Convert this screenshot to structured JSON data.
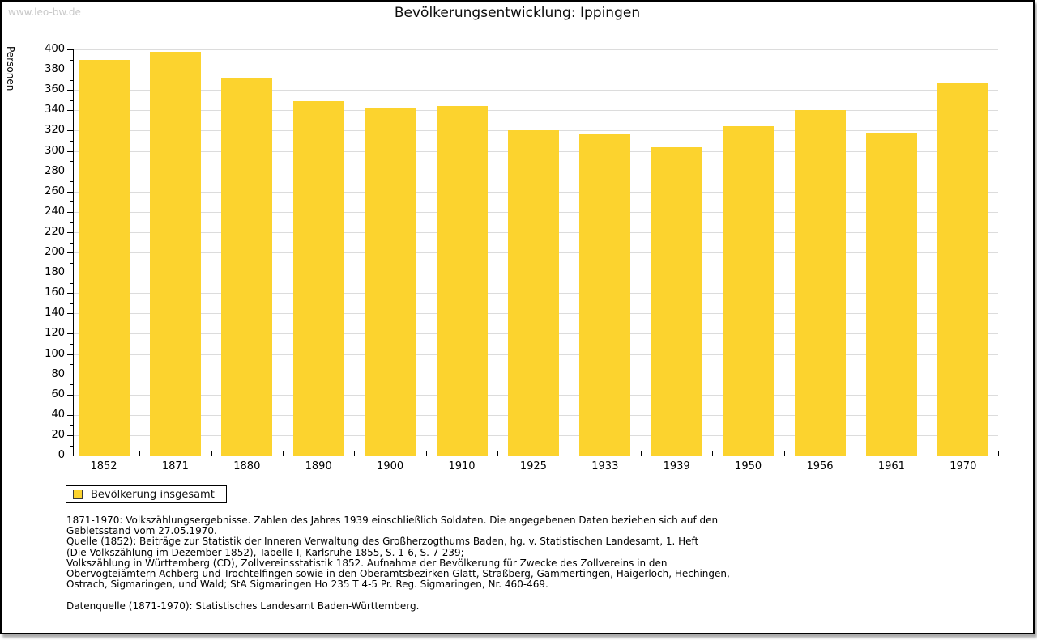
{
  "watermark": "www.leo-bw.de",
  "title": "Bevölkerungsentwicklung: Ippingen",
  "chart_data": {
    "type": "bar",
    "title": "Bevölkerungsentwicklung: Ippingen",
    "xlabel": "",
    "ylabel": "Personen",
    "categories": [
      "1852",
      "1871",
      "1880",
      "1890",
      "1900",
      "1910",
      "1925",
      "1933",
      "1939",
      "1950",
      "1956",
      "1961",
      "1970"
    ],
    "series": [
      {
        "name": "Bevölkerung insgesamt",
        "values": [
          390,
          398,
          371,
          349,
          343,
          344,
          320,
          316,
          304,
          324,
          340,
          318,
          367
        ]
      }
    ],
    "ylim": [
      0,
      400
    ],
    "ytick_major": 20,
    "ytick_minor": 10,
    "grid": true,
    "legend_position": "bottom-left",
    "bar_color": "#fcd32e",
    "grid_color": "#dcdcdc",
    "axis_color": "#000000"
  },
  "legend": {
    "label": "Bevölkerung insgesamt",
    "swatch_color": "#fcd32e"
  },
  "footnotes": {
    "lines": [
      "1871-1970: Volkszählungsergebnisse. Zahlen des Jahres 1939 einschließlich Soldaten. Die angegebenen Daten beziehen sich auf den",
      "Gebietsstand vom 27.05.1970.",
      "Quelle (1852): Beiträge zur Statistik der Inneren Verwaltung des Großherzogthums Baden, hg. v. Statistischen Landesamt, 1. Heft",
      "(Die Volkszählung im Dezember 1852), Tabelle I, Karlsruhe 1855, S. 1-6, S. 7-239;",
      "Volkszählung in Württemberg (CD), Zollvereinsstatistik 1852. Aufnahme der Bevölkerung für Zwecke des Zollvereins in den",
      "Obervogteiämtern Achberg und Trochtelfingen sowie in den Oberamtsbezirken Glatt, Straßberg, Gammertingen, Haigerloch, Hechingen,",
      "Ostrach, Sigmaringen, und Wald; StA Sigmaringen Ho 235 T 4-5 Pr. Reg. Sigmaringen, Nr. 460-469."
    ],
    "datasource": "Datenquelle (1871-1970): Statistisches Landesamt Baden-Württemberg."
  }
}
